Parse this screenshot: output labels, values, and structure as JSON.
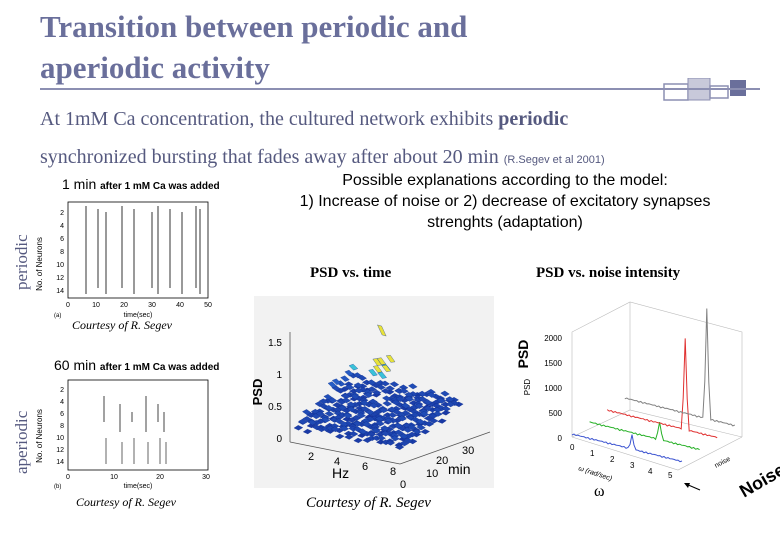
{
  "title": {
    "line1": "Transition between periodic and",
    "line2": "aperiodic activity"
  },
  "intro": {
    "part1": "At 1mM Ca concentration, the cultured network exhibits ",
    "bold": "periodic",
    "part2": "synchronized bursting that fades away after about 20 min ",
    "citation": "(R.Segev et al 2001)"
  },
  "explanation": {
    "line1": "Possible explanations according to the model:",
    "line2": "1) Increase of noise or 2) decrease of excitatory synapses",
    "line3": "strenghts (adaptation)"
  },
  "side_labels": {
    "periodic": "periodic",
    "aperiodic": "aperiodic"
  },
  "raster_top": {
    "title_main": "1 min",
    "title_small": "after 1 mM Ca was added",
    "ylabel": "No. of Neurons",
    "xlabel": "time(sec)",
    "yticks": [
      "2",
      "4",
      "6",
      "8",
      "10",
      "12",
      "14"
    ],
    "xticks": [
      "0",
      "10",
      "20",
      "30",
      "40",
      "50"
    ],
    "panel_letter": "(a)",
    "courtesy": "Courtesy of R. Segev"
  },
  "raster_bottom": {
    "title_main": "60 min",
    "title_small": "after 1 mM Ca was added",
    "ylabel": "No. of Neurons",
    "xlabel": "time(sec)",
    "yticks": [
      "2",
      "4",
      "6",
      "8",
      "10",
      "12",
      "14"
    ],
    "xticks": [
      "0",
      "10",
      "20",
      "30"
    ],
    "panel_letter": "(b)",
    "courtesy": "Courtesy of R. Segev"
  },
  "psd_time": {
    "header": "PSD vs. time",
    "zlabel": "PSD",
    "xlabel": "Hz",
    "ylabel": "min",
    "zticks": [
      "0",
      "0.5",
      "1",
      "1.5"
    ],
    "hz_ticks": [
      "2",
      "4",
      "6",
      "8"
    ],
    "min_ticks": [
      "0",
      "10",
      "20",
      "30"
    ],
    "courtesy": "Courtesy of R. Segev"
  },
  "psd_noise": {
    "header": "PSD vs. noise intensity",
    "ylabel_big": "PSD",
    "ylabel_small": "PSD",
    "zticks": [
      "0",
      "500",
      "1000",
      "1500",
      "2000"
    ],
    "omega_ticks": [
      "0",
      "1",
      "2",
      "3",
      "4",
      "5"
    ],
    "omega_axis": "ω (rad/sec)",
    "noise_axis": "noise",
    "omega_label": "ω",
    "noise_label": "Noise",
    "colors": {
      "blue": "#3a52d0",
      "green": "#25b025",
      "red": "#e03030",
      "gray": "#808080"
    }
  },
  "colors": {
    "title": "#6a6f9b",
    "rule": "#8c8fb2"
  }
}
